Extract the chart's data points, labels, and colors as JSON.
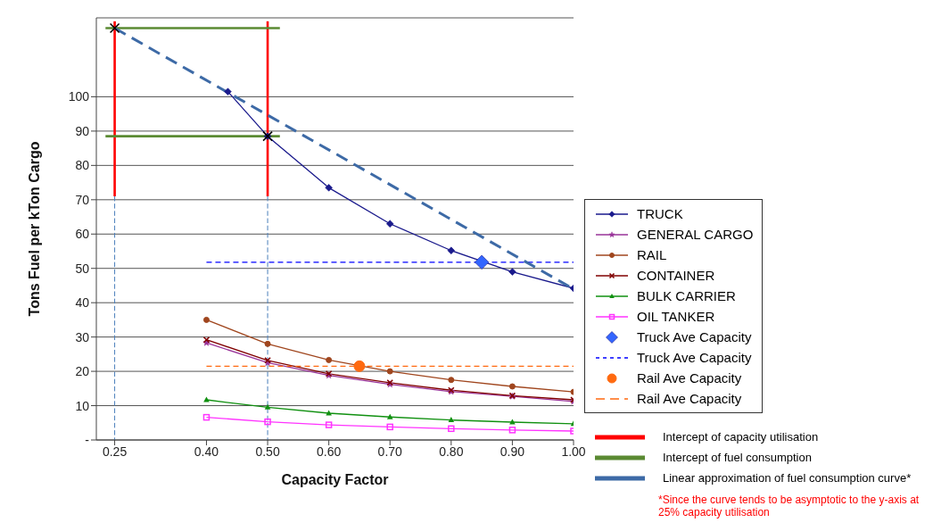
{
  "chart_data": {
    "type": "line",
    "xlabel": "Capacity Factor",
    "ylabel": "Tons Fuel per kTon Cargo",
    "x": [
      0.4,
      0.5,
      0.6,
      0.7,
      0.8,
      0.9,
      1.0
    ],
    "xlim": [
      0.22,
      1.0
    ],
    "xticks": [
      {
        "value": 0.25,
        "label": "0.25"
      },
      {
        "value": 0.4,
        "label": "0.40"
      },
      {
        "value": 0.5,
        "label": "0.50"
      },
      {
        "value": 0.6,
        "label": "0.60"
      },
      {
        "value": 0.7,
        "label": "0.70"
      },
      {
        "value": 0.8,
        "label": "0.80"
      },
      {
        "value": 0.9,
        "label": "0.90"
      },
      {
        "value": 1.0,
        "label": "1.00"
      }
    ],
    "ylim": [
      0,
      123
    ],
    "yticks": [
      {
        "value": 0,
        "label": "-"
      },
      10,
      20,
      30,
      40,
      50,
      60,
      70,
      80,
      90,
      100
    ],
    "grid": "y",
    "legend": "right",
    "line_style": "solid",
    "series": [
      {
        "name": "TRUCK",
        "color": "#1a1a8c",
        "marker": "diamond",
        "x": [
          0.435,
          0.5,
          0.6,
          0.7,
          0.8,
          0.9,
          1.0
        ],
        "values": [
          101.5,
          88.5,
          73.5,
          63,
          55.2,
          49,
          44.2
        ]
      },
      {
        "name": "GENERAL CARGO",
        "color": "#993399",
        "marker": "star",
        "values": [
          28.3,
          22.5,
          18.8,
          16.2,
          14.1,
          12.7,
          11.2
        ]
      },
      {
        "name": "RAIL",
        "color": "#a0461e",
        "marker": "circle",
        "values": [
          35,
          28,
          23.3,
          20,
          17.5,
          15.6,
          14
        ]
      },
      {
        "name": "CONTAINER",
        "color": "#800000",
        "marker": "cross",
        "values": [
          29.2,
          23.2,
          19.3,
          16.7,
          14.5,
          12.9,
          11.7
        ]
      },
      {
        "name": "BULK CARRIER",
        "color": "#109010",
        "marker": "triangle",
        "values": [
          11.7,
          9.5,
          7.8,
          6.7,
          5.8,
          5.2,
          4.7
        ]
      },
      {
        "name": "OIL TANKER",
        "color": "#ff33ff",
        "marker": "square",
        "values": [
          6.6,
          5.3,
          4.4,
          3.8,
          3.3,
          2.9,
          2.6
        ]
      },
      {
        "name": "Truck Ave Capacity",
        "type": "scatter",
        "color": "#3366ff",
        "marker": "diamond",
        "x": [
          0.85
        ],
        "values": [
          51.8
        ]
      },
      {
        "name": "Truck Ave Capacity",
        "color": "#0000ff",
        "marker": "none",
        "line_style": "dashed",
        "x": [
          0.4,
          1.0
        ],
        "values": [
          51.8,
          51.8
        ]
      },
      {
        "name": "Rail Ave Capacity",
        "type": "scatter",
        "color": "#ff6a10",
        "marker": "circle",
        "x": [
          0.65
        ],
        "values": [
          21.5
        ]
      },
      {
        "name": "Rail Ave Capacity",
        "color": "#ff6a10",
        "marker": "none",
        "line_style": "dashed",
        "x": [
          0.4,
          1.0
        ],
        "values": [
          21.5,
          21.5
        ]
      },
      {
        "name": "Intercept of capacity utilisation",
        "color": "#ff0000",
        "x": [
          0.25,
          0.25
        ],
        "values": [
          71,
          122
        ]
      },
      {
        "color": "#ff0000",
        "x": [
          0.5,
          0.5
        ],
        "values": [
          71,
          122
        ]
      },
      {
        "name": "Intercept of fuel consumption",
        "color": "#5a8a32",
        "x": [
          0.235,
          0.52
        ],
        "values": [
          120,
          120
        ]
      },
      {
        "color": "#5a8a32",
        "x": [
          0.235,
          0.52
        ],
        "values": [
          88.5,
          88.5
        ]
      },
      {
        "name": "Linear approximation of fuel consumption curve*",
        "color": "#3d6aa6",
        "line_style": "dashed",
        "x": [
          0.25,
          1.0
        ],
        "values": [
          120,
          44
        ]
      },
      {
        "color": "#4a7ebb",
        "line_style": "dotted",
        "x": [
          0.25,
          0.25
        ],
        "values": [
          71,
          0
        ]
      },
      {
        "color": "#4a7ebb",
        "line_style": "dotted",
        "x": [
          0.5,
          0.5
        ],
        "values": [
          71,
          0
        ]
      },
      {
        "type": "scatter",
        "color": "#000000",
        "marker": "cross",
        "x": [
          0.25,
          0.5
        ],
        "values": [
          120,
          88.5
        ]
      }
    ],
    "annotations": [
      "*Since the curve tends to be asymptotic to the y-axis at 25% capacity utilisation"
    ]
  }
}
